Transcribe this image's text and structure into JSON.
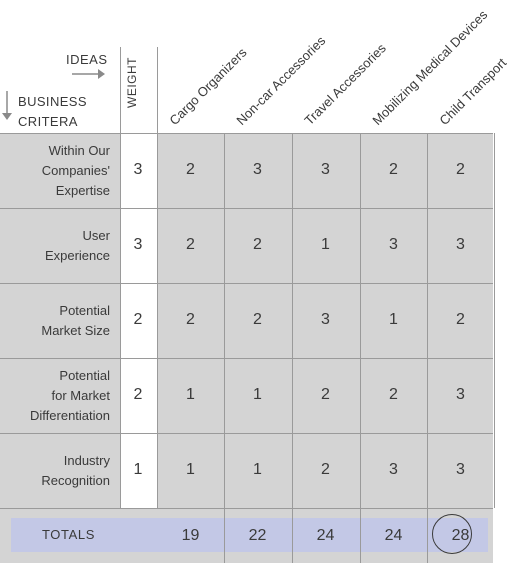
{
  "header": {
    "ideas_label": "IDEAS",
    "business_label_line1": "BUSINESS",
    "business_label_line2": "CRITERA",
    "weight_label": "WEIGHT"
  },
  "ideas": [
    "Cargo Organizers",
    "Non-car Accessories",
    "Travel Accessories",
    "Mobilizing Medical Devices",
    "Child Transport"
  ],
  "criteria": [
    {
      "lines": [
        "Within Our",
        "Companies'",
        "Expertise"
      ],
      "weight": "3",
      "scores": [
        "2",
        "3",
        "3",
        "2",
        "2"
      ]
    },
    {
      "lines": [
        "User",
        "Experience"
      ],
      "weight": "3",
      "scores": [
        "2",
        "2",
        "1",
        "3",
        "3"
      ]
    },
    {
      "lines": [
        "Potential",
        "Market Size"
      ],
      "weight": "2",
      "scores": [
        "2",
        "2",
        "3",
        "1",
        "2"
      ]
    },
    {
      "lines": [
        "Potential",
        "for Market",
        "Differentiation"
      ],
      "weight": "2",
      "scores": [
        "1",
        "1",
        "2",
        "2",
        "3"
      ]
    },
    {
      "lines": [
        "Industry",
        "Recognition"
      ],
      "weight": "1",
      "scores": [
        "1",
        "1",
        "2",
        "3",
        "3"
      ]
    }
  ],
  "totals": {
    "label": "TOTALS",
    "values": [
      "19",
      "22",
      "24",
      "24",
      "28"
    ],
    "highlight_color": "#c3c8e6"
  }
}
